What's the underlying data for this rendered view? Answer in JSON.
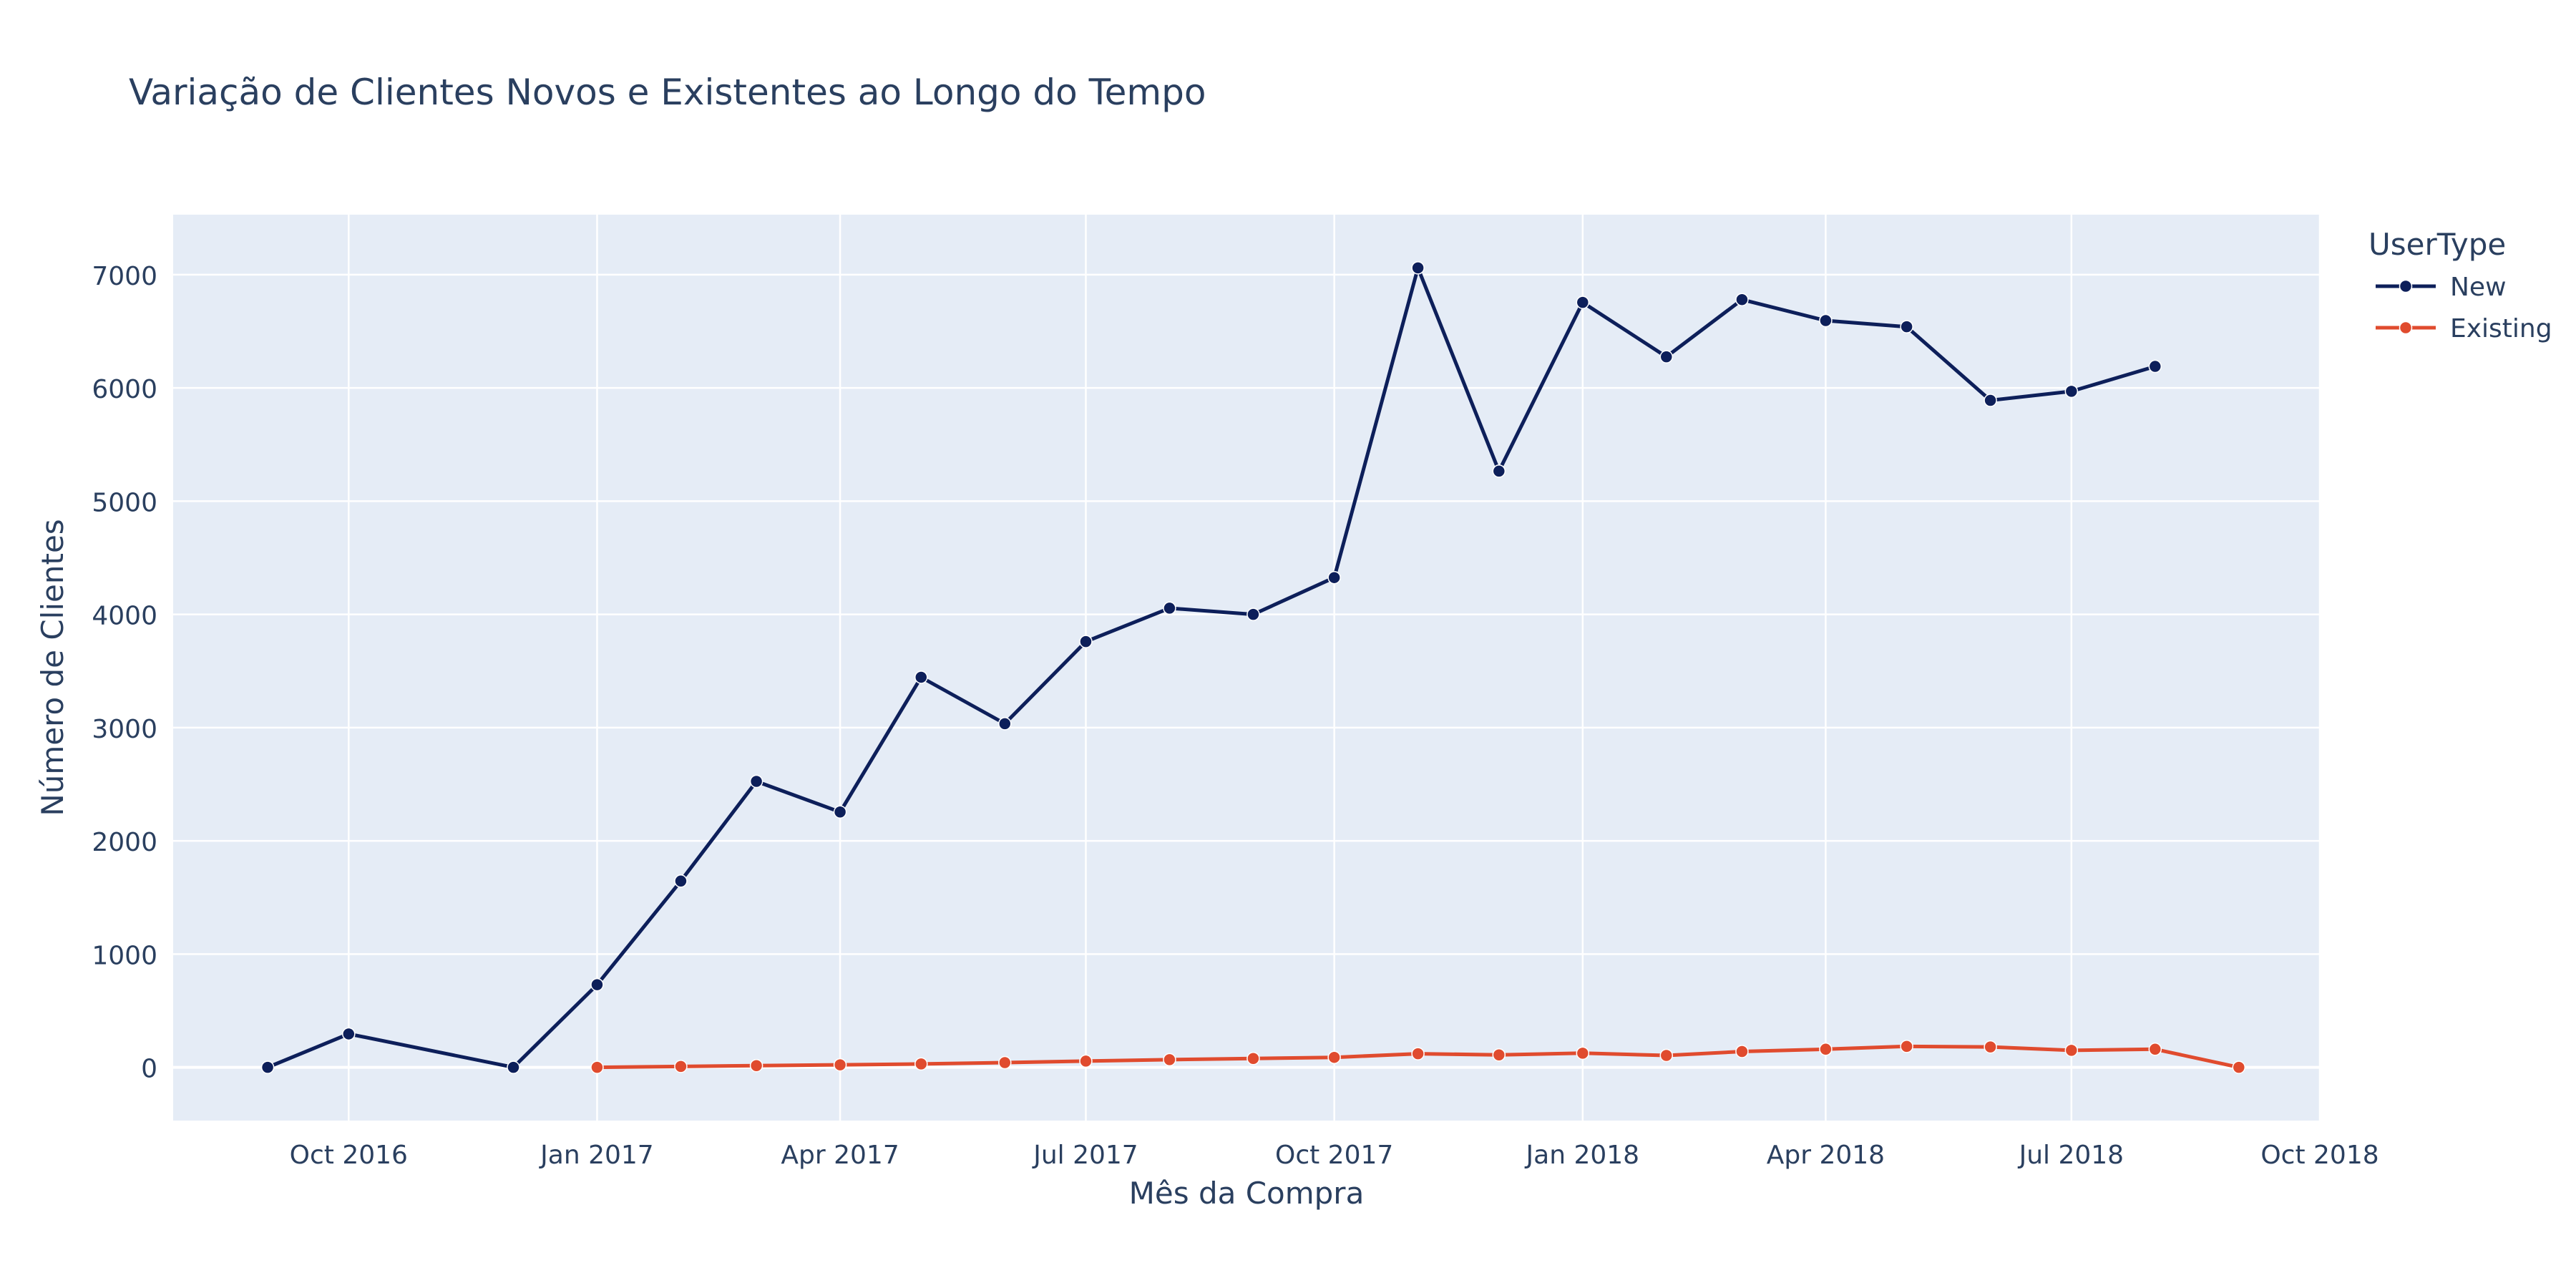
{
  "chart_data": {
    "type": "line",
    "title": "Variação de Clientes Novos e Existentes ao Longo do Tempo",
    "xlabel": "Mês da Compra",
    "ylabel": "Número de Clientes",
    "xlim": [
      "2016-07-28",
      "2018-10-01"
    ],
    "ylim": [
      -470,
      7530
    ],
    "x_ticks": [
      {
        "date": "2016-10-01",
        "label": "Oct 2016"
      },
      {
        "date": "2017-01-01",
        "label": "Jan 2017"
      },
      {
        "date": "2017-04-01",
        "label": "Apr 2017"
      },
      {
        "date": "2017-07-01",
        "label": "Jul 2017"
      },
      {
        "date": "2017-10-01",
        "label": "Oct 2017"
      },
      {
        "date": "2018-01-01",
        "label": "Jan 2018"
      },
      {
        "date": "2018-04-01",
        "label": "Apr 2018"
      },
      {
        "date": "2018-07-01",
        "label": "Jul 2018"
      },
      {
        "date": "2018-10-01",
        "label": "Oct 2018"
      }
    ],
    "y_ticks": [
      0,
      1000,
      2000,
      3000,
      4000,
      5000,
      6000,
      7000
    ],
    "y_tick_labels": [
      "0",
      "1000",
      "2000",
      "3000",
      "4000",
      "5000",
      "6000",
      "7000"
    ],
    "grid": true,
    "background": "#e5ecf6",
    "legend": {
      "title": "UserType",
      "placement": "right"
    },
    "series": [
      {
        "name": "New",
        "color": "#0d1f5a",
        "x": [
          "2016-09-01",
          "2016-10-01",
          "2016-12-01",
          "2017-01-01",
          "2017-02-01",
          "2017-03-01",
          "2017-04-01",
          "2017-05-01",
          "2017-06-01",
          "2017-07-01",
          "2017-08-01",
          "2017-09-01",
          "2017-10-01",
          "2017-11-01",
          "2017-12-01",
          "2018-01-01",
          "2018-02-01",
          "2018-03-01",
          "2018-04-01",
          "2018-05-01",
          "2018-06-01",
          "2018-07-01",
          "2018-08-01"
        ],
        "y": [
          0,
          295,
          0,
          730,
          1645,
          2525,
          2255,
          3445,
          3035,
          3760,
          4055,
          4000,
          4325,
          7060,
          5265,
          6755,
          6275,
          6780,
          6595,
          6540,
          5890,
          5970,
          6190
        ]
      },
      {
        "name": "Existing",
        "color": "#e04b2e",
        "x": [
          "2017-01-01",
          "2017-02-01",
          "2017-03-01",
          "2017-04-01",
          "2017-05-01",
          "2017-06-01",
          "2017-07-01",
          "2017-08-01",
          "2017-09-01",
          "2017-10-01",
          "2017-11-01",
          "2017-12-01",
          "2018-01-01",
          "2018-02-01",
          "2018-03-01",
          "2018-04-01",
          "2018-05-01",
          "2018-06-01",
          "2018-07-01",
          "2018-08-01",
          "2018-09-01"
        ],
        "y": [
          0,
          8,
          15,
          22,
          30,
          42,
          55,
          68,
          78,
          88,
          120,
          110,
          125,
          105,
          140,
          160,
          185,
          180,
          150,
          160,
          0
        ]
      }
    ]
  }
}
